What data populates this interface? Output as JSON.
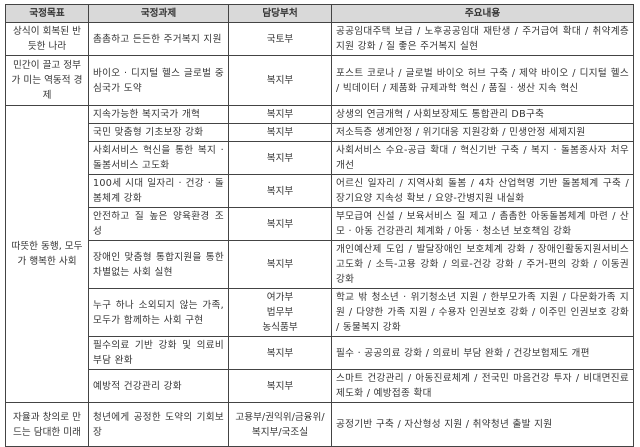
{
  "headers": [
    "국정목표",
    "국정과제",
    "담당부처",
    "주요내용"
  ],
  "goals": [
    "상식이 회복된 반듯한 나라",
    "민간이 끌고 정부가 미는 역동적 경제",
    "따뜻한 동행, 모두가 행복한 사회",
    "자율과 창의로 만드는 담대한 미래"
  ],
  "rows": [
    {
      "task": "촘촘하고 든든한 주거복지 지원",
      "dept": "국토부",
      "content": "공공임대주택 보급 / 노후공공임대 재탄생 / 주거급여 확대 / 취약계층 지원 강화 / 질 좋은 주거복지 실현"
    },
    {
      "task": "바이오 · 디지털 헬스 글로벌 중심국가 도약",
      "dept": "복지부",
      "content": "포스트 코로나 / 글로벌 바이오 허브 구축 / 제약 바이오 / 디지털 헬스 / 빅데이터 / 제품화 규제과학 혁신 / 품질 · 생산 지속 혁신"
    },
    {
      "task": "지속가능한 복지국가 개혁",
      "dept": "복지부",
      "content": "상생의 연금개혁 / 사회보장제도 통합관리 DB구축"
    },
    {
      "task": "국민 맞춤형 기초보장 강화",
      "dept": "복지부",
      "content": "저소득층 생계안정 / 위기대응 지원강화 / 민생안정 세제지원"
    },
    {
      "task": "사회서비스 혁신을 통한 복지 · 돌봄서비스 고도화",
      "dept": "복지부",
      "content": "사회서비스 수요-공급 확대 / 혁신기반 구축 / 복지 · 돌봄종사자 처우개선"
    },
    {
      "task": "100세 시대 일자리 · 건강 · 돌봄체계 강화",
      "dept": "복지부",
      "content": "어르신 일자리 / 지역사회 돌봄 / 4차 산업혁명 기반 돌봄체계 구축 / 장기요양 지속성 확보 / 요양-간병지원 내실화"
    },
    {
      "task": "안전하고 질 높은 양육환경 조성",
      "dept": "복지부",
      "content": "부모급여 신설 / 보육서비스 질 제고 / 촘촘한 아동돌봄체계 마련 / 산모 · 아동 건강관리 체계화 / 아동 · 청소년 보호책임 강화"
    },
    {
      "task": "장애인 맞춤형 통합지원을 통한 차별없는 사회 실현",
      "dept": "복지부",
      "content": "개인예산제 도입 / 발달장애인 보호체계 강화 / 장애인활동지원서비스 고도화 / 소득-고용 강화 / 의료-건강 강화 / 주거-편의 강화 / 이동권 강화"
    },
    {
      "task": "누구 하나 소외되지 않는 가족, 모두가 함께하는 사회 구현",
      "dept": "여가부\n법무부\n농식품부",
      "content": "학교 밖 청소년 · 위기청소년 지원 / 한부모가족 지원 / 다문화가족 지원 / 다양한 가족 지원 / 수용자 인권보호 강화 / 이주민 인권보호 강화 / 동물복지 강화"
    },
    {
      "task": "필수의료 기반 강화 및 의료비 부담 완화",
      "dept": "복지부",
      "content": "필수 · 공공의료 강화 / 의료비 부담 완화 / 건강보험제도 개편"
    },
    {
      "task": "예방적 건강관리 강화",
      "dept": "복지부",
      "content": "스마트 건강관리 / 아동진료체계 / 전국민 마음건강 투자 / 비대면진료 제도화 / 예방접종 확대"
    },
    {
      "task": "청년에게 공정한 도약의 기회보장",
      "dept": "고용부/권익위/금융위/복지부/국조실",
      "content": "공정기반 구축 / 자산형성 지원 / 취약청년 출발 지원"
    }
  ]
}
